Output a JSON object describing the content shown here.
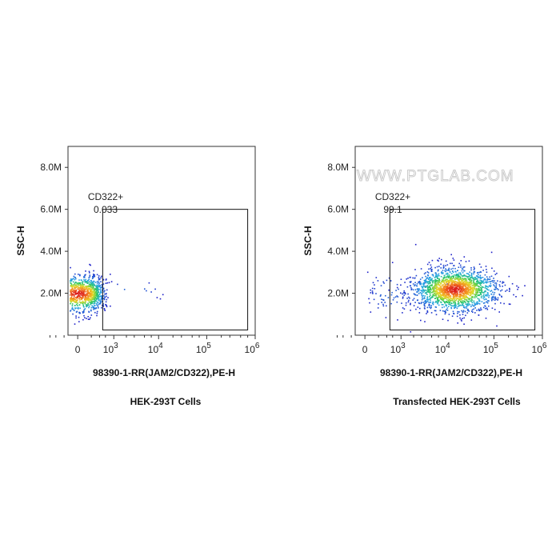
{
  "watermark": "WWW.PTGLAB.COM",
  "chart_data": [
    {
      "type": "scatter",
      "title": "",
      "caption": "HEK-293T Cells",
      "xlabel": "98390-1-RR(JAM2/CD322),PE-H",
      "ylabel": "SSC-H",
      "x_scale": "biexponential",
      "y_ticks": [
        "2.0M",
        "4.0M",
        "6.0M",
        "8.0M"
      ],
      "y_tick_values": [
        2000000,
        4000000,
        6000000,
        8000000
      ],
      "ylim": [
        0,
        9000000
      ],
      "x_ticks": [
        {
          "base": "0",
          "exp": ""
        },
        {
          "base": "10",
          "exp": "3"
        },
        {
          "base": "10",
          "exp": "4"
        },
        {
          "base": "10",
          "exp": "5"
        },
        {
          "base": "10",
          "exp": "6"
        }
      ],
      "gate": {
        "name": "CD322+",
        "percent": "0.033",
        "x_range": [
          500,
          700000
        ],
        "y_range": [
          250000,
          6000000
        ]
      },
      "populations": [
        {
          "x_center": 0,
          "x_spread": 260,
          "y_center": 2000000,
          "y_spread": 430000,
          "fraction": 0.99
        },
        {
          "x_center": 2500,
          "x_spread": 4000,
          "y_center": 2200000,
          "y_spread": 200000,
          "fraction": 0.01
        }
      ]
    },
    {
      "type": "scatter",
      "title": "",
      "caption": "Transfected HEK-293T Cells",
      "xlabel": "98390-1-RR(JAM2/CD322),PE-H",
      "ylabel": "SSC-H",
      "x_scale": "biexponential",
      "y_ticks": [
        "2.0M",
        "4.0M",
        "6.0M",
        "8.0M"
      ],
      "y_tick_values": [
        2000000,
        4000000,
        6000000,
        8000000
      ],
      "ylim": [
        0,
        9000000
      ],
      "x_ticks": [
        {
          "base": "0",
          "exp": ""
        },
        {
          "base": "10",
          "exp": "3"
        },
        {
          "base": "10",
          "exp": "4"
        },
        {
          "base": "10",
          "exp": "5"
        },
        {
          "base": "10",
          "exp": "6"
        }
      ],
      "gate": {
        "name": "CD322+",
        "percent": "99.1",
        "x_range": [
          500,
          700000
        ],
        "y_range": [
          250000,
          6000000
        ]
      },
      "populations": [
        {
          "x_center": 15000,
          "x_spread": 0.45,
          "y_center": 2200000,
          "y_spread": 520000,
          "fraction": 0.96
        },
        {
          "x_center": 400,
          "x_spread": 0.5,
          "y_center": 2000000,
          "y_spread": 550000,
          "fraction": 0.04
        }
      ]
    }
  ]
}
